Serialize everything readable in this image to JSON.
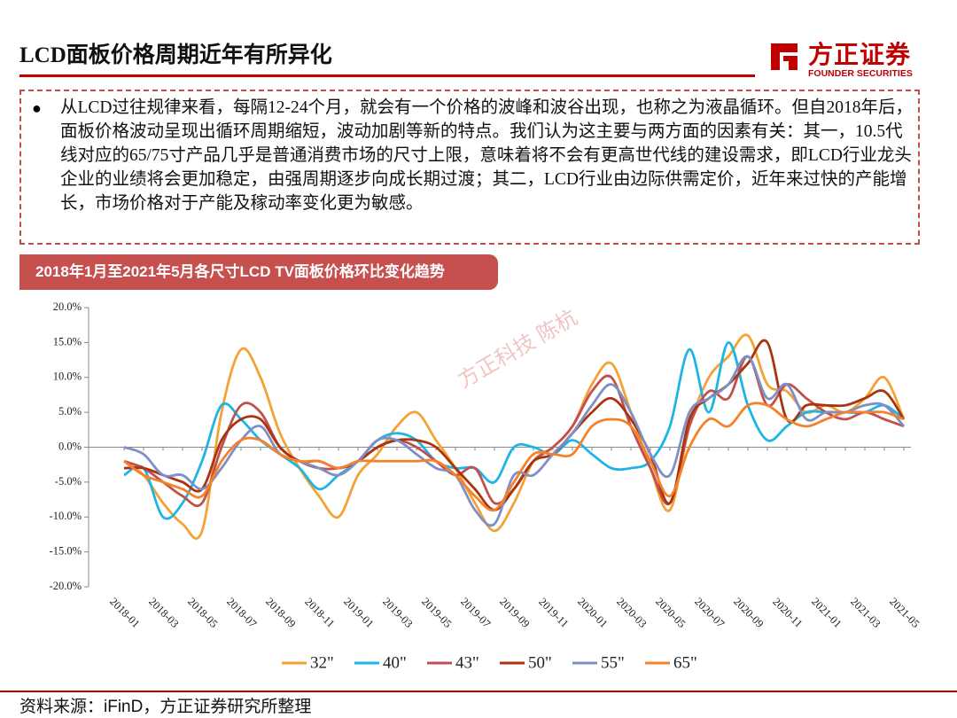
{
  "title": "LCD面板价格周期近年有所异化",
  "logo": {
    "name": "方正证券",
    "subtitle": "FOUNDER SECURITIES"
  },
  "bullet": "从LCD过往规律来看，每隔12-24个月，就会有一个价格的波峰和波谷出现，也称之为液晶循环。但自2018年后，面板价格波动呈现出循环周期缩短，波动加剧等新的特点。我们认为这主要与两方面的因素有关：其一，10.5代线对应的65/75寸产品几乎是普通消费市场的尺寸上限，意味着将不会有更高世代线的建设需求，即LCD行业龙头企业的业绩将会更加稳定，由强周期逐步向成长期过渡；其二，LCD行业由边际供需定价，近年来过快的产能增长，市场价格对于产能及稼动率变化更为敏感。",
  "watermark": "方正科技 陈杭",
  "source": "资料来源：iFinD，方正证券研究所整理",
  "chart_data": {
    "type": "line",
    "title": "2018年1月至2021年5月各尺寸LCD TV面板价格环比变化趋势",
    "categories": [
      "2018-01",
      null,
      "2018-03",
      null,
      "2018-05",
      null,
      "2018-07",
      null,
      "2018-09",
      null,
      "2018-11",
      null,
      "2019-01",
      null,
      "2019-03",
      null,
      "2019-05",
      null,
      "2019-07",
      null,
      "2019-09",
      null,
      "2019-11",
      null,
      "2020-01",
      null,
      "2020-03",
      null,
      "2020-05",
      null,
      "2020-07",
      null,
      "2020-09",
      null,
      "2020-11",
      null,
      "2021-01",
      null,
      "2021-03",
      null,
      "2021-05"
    ],
    "ylim": [
      -20,
      20
    ],
    "yticks": [
      {
        "value": -20,
        "label": "-20.0%"
      },
      {
        "value": -15,
        "label": "-15.0%"
      },
      {
        "value": -10,
        "label": "-10.0%"
      },
      {
        "value": -5,
        "label": "-5.0%"
      },
      {
        "value": 0,
        "label": "0.0%"
      },
      {
        "value": 5,
        "label": "5.0%"
      },
      {
        "value": 10,
        "label": "10.0%"
      },
      {
        "value": 15,
        "label": "15.0%"
      },
      {
        "value": 20,
        "label": "20.0%"
      }
    ],
    "legend": "bottom",
    "series": [
      {
        "name": "32\"",
        "color": "#f4a236",
        "values": [
          -2,
          -4,
          -8,
          -11,
          -12,
          5,
          14,
          10,
          2,
          -3,
          -7,
          -10,
          -4,
          -1,
          3,
          5,
          1,
          -3,
          -8,
          -12,
          -8,
          -2,
          0,
          3,
          9,
          12,
          5,
          -3,
          -9,
          3,
          10,
          13,
          16,
          9,
          8,
          5,
          6,
          5,
          7,
          10,
          4
        ]
      },
      {
        "name": "40\"",
        "color": "#1fb4e6",
        "values": [
          -4,
          -3,
          -10,
          -8,
          -2,
          6,
          4,
          1,
          -1,
          -3,
          -6,
          -4,
          -2,
          1,
          2,
          1,
          -2,
          -3,
          -3,
          -5,
          0,
          0,
          -1,
          1,
          -1,
          -3,
          -3,
          -2,
          3,
          14,
          5,
          15,
          6,
          1,
          3,
          5,
          5,
          5,
          5,
          6,
          4
        ]
      },
      {
        "name": "43\"",
        "color": "#c0504d",
        "values": [
          -2,
          -3,
          -5,
          -7,
          -8,
          0,
          6,
          5,
          0,
          -2,
          -3,
          -3,
          -2,
          0,
          1,
          0,
          -2,
          -4,
          -3,
          -8,
          -6,
          -2,
          0,
          3,
          8,
          10,
          3,
          -3,
          -8,
          3,
          8,
          7,
          13,
          6,
          9,
          7,
          5,
          4,
          5,
          4,
          3
        ]
      },
      {
        "name": "50\"",
        "color": "#a8350f",
        "values": [
          -3,
          -3,
          -4,
          -5,
          -6,
          1,
          4,
          4,
          0,
          -2,
          -2,
          -3,
          -2,
          0,
          1,
          1,
          0,
          -3,
          -6,
          -9,
          -6,
          -2,
          -1,
          2,
          5,
          7,
          4,
          -1,
          -8,
          4,
          7,
          9,
          12,
          15,
          4,
          6,
          6,
          6,
          7,
          8,
          4
        ]
      },
      {
        "name": "55\"",
        "color": "#7f8fc6",
        "values": [
          0,
          -1,
          -4,
          -4,
          -6,
          -3,
          1,
          3,
          -1,
          -2,
          -3,
          -4,
          -2,
          1,
          1,
          -1,
          -3,
          -4,
          -9,
          -11,
          -4,
          -4,
          -1,
          2,
          6,
          9,
          5,
          -1,
          -4,
          5,
          7,
          9,
          13,
          7,
          9,
          4,
          5,
          5,
          6,
          6,
          3
        ]
      },
      {
        "name": "65\"",
        "color": "#f5822a",
        "values": [
          -2,
          -4,
          -5,
          -6,
          -7,
          -2,
          1,
          1,
          -1,
          -2,
          -2,
          -3,
          -2,
          -2,
          -2,
          -2,
          -2,
          -4,
          -7,
          -9,
          -5,
          -1,
          -1,
          -1,
          3,
          4,
          3,
          -2,
          -7,
          0,
          4,
          3,
          6,
          6,
          4,
          3,
          4,
          5,
          5,
          5,
          4
        ]
      }
    ]
  }
}
